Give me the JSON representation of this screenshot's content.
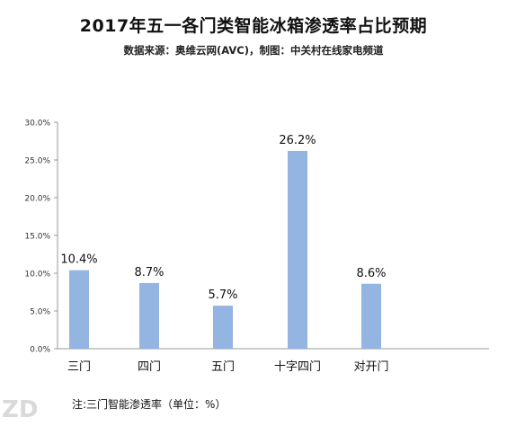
{
  "header": {
    "title": "2017年五一各门类智能冰箱渗透率占比预期",
    "subtitle": "数据来源：奥维云网(AVC)，制图：中关村在线家电频道"
  },
  "footer": {
    "note": "注:三门智能渗透率（单位：%）"
  },
  "colors": {
    "bar": "#94b4e2",
    "axis": "#999999",
    "text": "#111111"
  },
  "chart_data": {
    "type": "bar",
    "categories": [
      "三门",
      "四门",
      "五门",
      "十字四门",
      "对开门"
    ],
    "values": [
      10.4,
      8.7,
      5.7,
      26.2,
      8.6
    ],
    "data_labels": [
      "10.4%",
      "8.7%",
      "5.7%",
      "26.2%",
      "8.6%"
    ],
    "y_ticks": [
      "0.0%",
      "5.0%",
      "10.0%",
      "15.0%",
      "20.0%",
      "25.0%",
      "30.0%"
    ],
    "ylim": [
      0,
      30
    ],
    "grid": false,
    "legend": "none"
  }
}
